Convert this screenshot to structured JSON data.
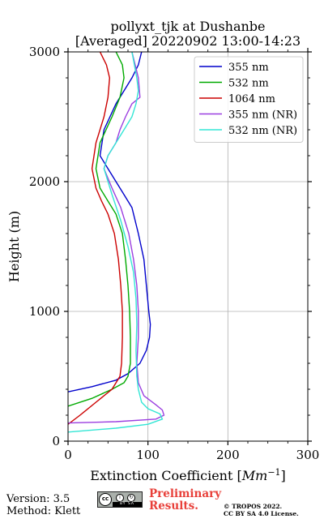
{
  "chart_data": {
    "type": "line",
    "title": "pollyxt_tjk at Dushanbe",
    "subtitle": "[Averaged] 20220902 13:00-14:23",
    "xlabel": "Extinction Coefficient [Mm⁻¹]",
    "ylabel": "Height (m)",
    "xlim": [
      0,
      300
    ],
    "ylim": [
      0,
      3000
    ],
    "xticks": [
      0,
      100,
      200,
      300
    ],
    "yticks": [
      0,
      1000,
      2000,
      3000
    ],
    "grid": true,
    "legend_position": "top-right",
    "series": [
      {
        "name": "355 nm",
        "color": "#0000cc",
        "x": [
          0,
          30,
          60,
          75,
          90,
          98,
          102,
          103,
          101,
          98,
          95,
          88,
          80,
          70,
          60,
          50,
          40,
          45,
          60,
          80,
          88,
          92
        ],
        "y": [
          380,
          420,
          470,
          520,
          600,
          700,
          800,
          900,
          1000,
          1200,
          1400,
          1600,
          1800,
          1900,
          2000,
          2100,
          2200,
          2400,
          2600,
          2800,
          2900,
          3000
        ]
      },
      {
        "name": "532 nm",
        "color": "#00aa00",
        "x": [
          0,
          30,
          55,
          70,
          75,
          78,
          78,
          77,
          75,
          72,
          68,
          60,
          50,
          40,
          35,
          40,
          55,
          65,
          70,
          68,
          60
        ],
        "y": [
          270,
          330,
          400,
          450,
          500,
          600,
          800,
          1000,
          1200,
          1400,
          1600,
          1750,
          1850,
          1950,
          2100,
          2300,
          2500,
          2650,
          2800,
          2900,
          3000
        ]
      },
      {
        "name": "1064 nm",
        "color": "#cc0000",
        "x": [
          0,
          15,
          35,
          55,
          65,
          67,
          68,
          68,
          66,
          63,
          58,
          50,
          42,
          35,
          30,
          35,
          45,
          50,
          52,
          48,
          40
        ],
        "y": [
          130,
          200,
          300,
          400,
          500,
          600,
          800,
          1000,
          1200,
          1400,
          1600,
          1750,
          1850,
          1950,
          2100,
          2300,
          2500,
          2650,
          2800,
          2900,
          3000
        ]
      },
      {
        "name": "355 nm (NR)",
        "color": "#9b3fe0",
        "x": [
          0,
          60,
          110,
          120,
          118,
          110,
          95,
          88,
          86,
          88,
          88,
          86,
          82,
          76,
          66,
          55,
          45,
          50,
          60,
          65,
          72,
          80,
          90,
          88,
          84,
          80
        ],
        "y": [
          140,
          150,
          170,
          200,
          240,
          280,
          350,
          450,
          600,
          800,
          1000,
          1200,
          1400,
          1600,
          1800,
          1950,
          2100,
          2200,
          2300,
          2400,
          2500,
          2600,
          2650,
          2800,
          2900,
          3000
        ]
      },
      {
        "name": "532 nm (NR)",
        "color": "#33e6d5",
        "x": [
          0,
          60,
          100,
          118,
          115,
          100,
          92,
          88,
          86,
          85,
          86,
          85,
          82,
          75,
          66,
          55,
          45,
          50,
          60,
          70,
          80,
          85,
          88,
          86,
          80
        ],
        "y": [
          70,
          100,
          130,
          170,
          210,
          250,
          300,
          400,
          500,
          700,
          900,
          1100,
          1300,
          1500,
          1700,
          1900,
          2100,
          2200,
          2300,
          2400,
          2500,
          2600,
          2700,
          2800,
          3000
        ]
      }
    ]
  },
  "footer": {
    "version": "Version: 3.5",
    "method": "Method: Klett",
    "preliminary_line1": "Preliminary",
    "preliminary_line2": "Results.",
    "copyright_line1": "© TROPOS 2022.",
    "copyright_line2": "CC BY SA 4.0 License.",
    "license_badge_text": "BY SA"
  }
}
